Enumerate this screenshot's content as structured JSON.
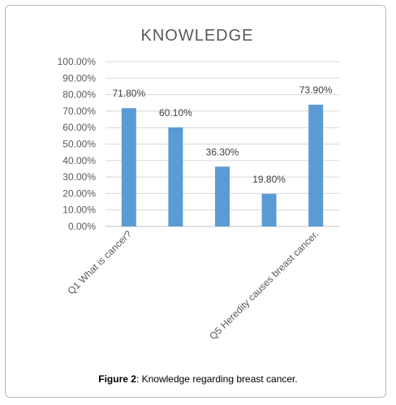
{
  "chart_data": {
    "type": "bar",
    "title": "KNOWLEDGE",
    "categories": [
      "Q1 What is cancer?",
      "",
      "",
      "",
      "Q5 Heredity causes breast cancer."
    ],
    "values": [
      71.8,
      60.1,
      36.3,
      19.8,
      73.9
    ],
    "data_labels": [
      "71.80%",
      "60.10%",
      "36.30%",
      "19.80%",
      "73.90%"
    ],
    "ylim": [
      0,
      100
    ],
    "y_ticks": [
      "0.00%",
      "10.00%",
      "20.00%",
      "30.00%",
      "40.00%",
      "50.00%",
      "60.00%",
      "70.00%",
      "80.00%",
      "90.00%",
      "100.00%"
    ],
    "grid": true,
    "bar_color": "#5b9bd5"
  },
  "caption": {
    "label": "Figure 2",
    "text": ": Knowledge regarding breast cancer."
  }
}
